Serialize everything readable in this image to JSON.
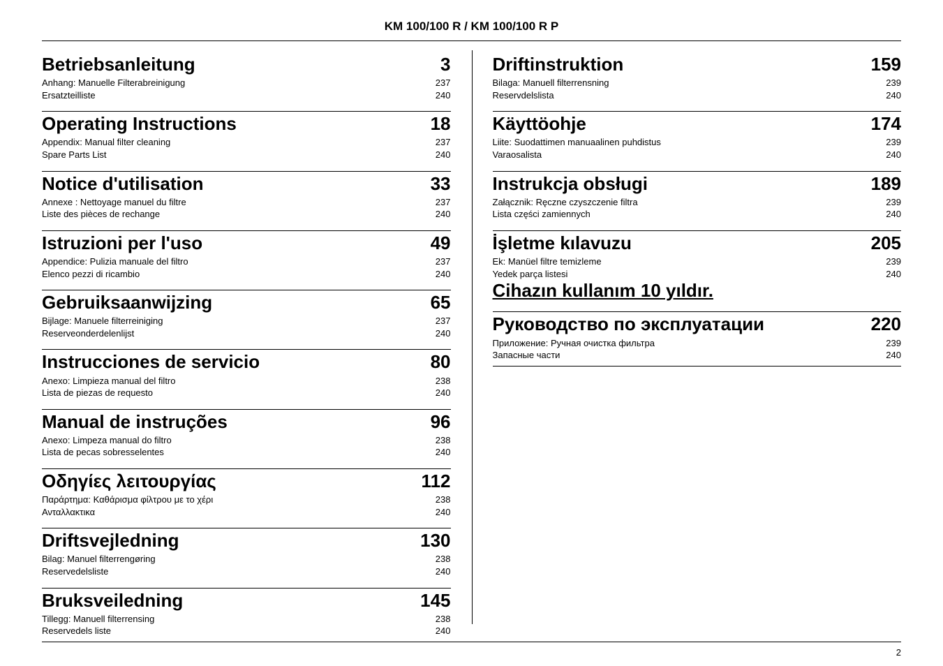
{
  "header": "KM 100/100 R / KM 100/100 R P",
  "page_number": "2",
  "colors": {
    "text": "#000000",
    "background": "#ffffff",
    "rule": "#000000"
  },
  "typography": {
    "header_fontsize": 17,
    "title_fontsize": 26,
    "sub_fontsize": 13,
    "pagenum_fontsize": 13,
    "font_family": "Arial"
  },
  "left_sections": [
    {
      "title": "Betriebsanleitung",
      "page": "3",
      "rows": [
        {
          "text": "Anhang: Manuelle Filterabreinigung",
          "page": "237"
        },
        {
          "text": "Ersatzteilliste",
          "page": "240"
        }
      ],
      "top_rule": false
    },
    {
      "title": "Operating Instructions",
      "page": "18",
      "rows": [
        {
          "text": "Appendix: Manual filter cleaning",
          "page": "237"
        },
        {
          "text": "Spare Parts List",
          "page": "240"
        }
      ],
      "top_rule": true
    },
    {
      "title": "Notice d'utilisation",
      "page": "33",
      "rows": [
        {
          "text": "Annexe : Nettoyage manuel du filtre",
          "page": "237"
        },
        {
          "text": "Liste des pièces de rechange",
          "page": "240"
        }
      ],
      "top_rule": true
    },
    {
      "title": "Istruzioni per l'uso",
      "page": "49",
      "rows": [
        {
          "text": "Appendice: Pulizia manuale del filtro",
          "page": "237"
        },
        {
          "text": "Elenco pezzi di ricambio",
          "page": "240"
        }
      ],
      "top_rule": true
    },
    {
      "title": "Gebruiksaanwijzing",
      "page": "65",
      "rows": [
        {
          "text": "Bijlage: Manuele filterreiniging",
          "page": "237"
        },
        {
          "text": "Reserveonderdelenlijst",
          "page": "240"
        }
      ],
      "top_rule": true
    },
    {
      "title": "Instrucciones de servicio",
      "page": "80",
      "rows": [
        {
          "text": "Anexo: Limpieza manual del filtro",
          "page": "238"
        },
        {
          "text": "Lista de piezas de requesto",
          "page": "240"
        }
      ],
      "top_rule": true
    },
    {
      "title": "Manual de instruções",
      "page": "96",
      "rows": [
        {
          "text": "Anexo: Limpeza manual do filtro",
          "page": "238"
        },
        {
          "text": "Lista de pecas sobresselentes",
          "page": "240"
        }
      ],
      "top_rule": true
    },
    {
      "title": "Οδηγίες λειτουργίας",
      "page": "112",
      "rows": [
        {
          "text": "Παράρτημα: Καθάρισμα φίλτρου με το χέρι",
          "page": "238"
        },
        {
          "text": "Ανταλλακτικα",
          "page": "240"
        }
      ],
      "top_rule": true
    },
    {
      "title": "Driftsvejledning",
      "page": "130",
      "rows": [
        {
          "text": "Bilag: Manuel filterrengøring",
          "page": "238"
        },
        {
          "text": "Reservedelsliste",
          "page": "240"
        }
      ],
      "top_rule": true
    },
    {
      "title": "Bruksveiledning",
      "page": "145",
      "rows": [
        {
          "text": "Tillegg: Manuell filterrensing",
          "page": "238"
        },
        {
          "text": "Reservedels liste",
          "page": "240"
        }
      ],
      "top_rule": true
    }
  ],
  "right_sections": [
    {
      "title": "Driftinstruktion",
      "page": "159",
      "rows": [
        {
          "text": "Bilaga: Manuell filterrensning",
          "page": "239"
        },
        {
          "text": "Reservdelslista",
          "page": "240"
        }
      ],
      "top_rule": false
    },
    {
      "title": "Käyttöohje",
      "page": "174",
      "rows": [
        {
          "text": "Liite: Suodattimen manuaalinen puhdistus",
          "page": "239"
        },
        {
          "text": "Varaosalista",
          "page": "240"
        }
      ],
      "top_rule": true
    },
    {
      "title": "Instrukcja obsługi",
      "page": "189",
      "rows": [
        {
          "text": "Załącznik: Ręczne czyszczenie filtra",
          "page": "239"
        },
        {
          "text": "Lista części zamiennych",
          "page": "240"
        }
      ],
      "top_rule": true
    },
    {
      "title": "İşletme kılavuzu",
      "page": "205",
      "rows": [
        {
          "text": "Ek: Manüel filtre temizleme",
          "page": "239"
        },
        {
          "text": "Yedek parça listesi",
          "page": "240"
        }
      ],
      "extra": "Cihazın kullanım 10 yıldır.",
      "top_rule": true
    },
    {
      "title": "Руководство по эксплуатации",
      "page": "220",
      "rows": [
        {
          "text": "Приложение: Ручная очистка фильтра",
          "page": "239"
        },
        {
          "text": "Запасные части",
          "page": "240"
        }
      ],
      "top_rule": true,
      "bottom_rule": true
    }
  ]
}
